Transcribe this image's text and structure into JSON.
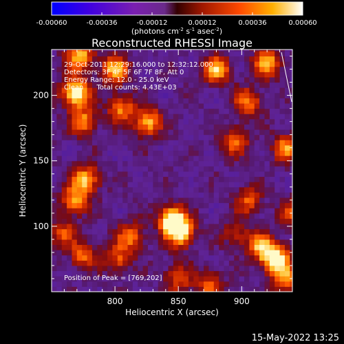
{
  "colorbar": {
    "tick_labels": [
      "-0.00060",
      "-0.00036",
      "-0.00012",
      "0.00012",
      "0.00036",
      "0.00060"
    ],
    "tick_values": [
      -0.0006,
      -0.00036,
      -0.00012,
      0.00012,
      0.00036,
      0.0006
    ],
    "range": [
      -0.0006,
      0.0006
    ],
    "units_main": "(photons cm",
    "units_sup1": "-2",
    "units_mid1": " s",
    "units_sup2": "-1",
    "units_mid2": " asec",
    "units_sup3": "-2",
    "units_end": ")",
    "colors": [
      "#0000ff",
      "#6a00c8",
      "#7f2a9e",
      "#5a1e7a",
      "#a01800",
      "#ff5000",
      "#ffd000",
      "#ffffff"
    ]
  },
  "chart_data": {
    "type": "heatmap",
    "title": "Reconstructed RHESSI Image",
    "xlabel": "Heliocentric X (arcsec)",
    "ylabel": "Heliocentric Y (arcsec)",
    "xlim": [
      750,
      940
    ],
    "ylim": [
      50,
      235
    ],
    "x_ticks": [
      800,
      850,
      900
    ],
    "y_ticks": [
      100,
      150,
      200
    ],
    "annotations": {
      "time": "29-Oct-2011 12:29:16.000 to 12:32:12.000",
      "detectors": "Detectors: 3F 4F 5F 6F 7F 8F, Att 0",
      "energy": "Energy Range: 12.0 - 25.0 keV",
      "clean": "Clean      Total counts: 4.43E+03",
      "peak": "Position of Peak = [769,202]"
    },
    "bright_sources": [
      {
        "x": 769,
        "y": 202,
        "intensity": 1.0
      },
      {
        "x": 772,
        "y": 230,
        "intensity": 0.75
      },
      {
        "x": 775,
        "y": 180,
        "intensity": 0.6
      },
      {
        "x": 800,
        "y": 220,
        "intensity": 0.7
      },
      {
        "x": 826,
        "y": 180,
        "intensity": 0.7
      },
      {
        "x": 805,
        "y": 190,
        "intensity": 0.55
      },
      {
        "x": 880,
        "y": 220,
        "intensity": 0.7
      },
      {
        "x": 920,
        "y": 225,
        "intensity": 0.7
      },
      {
        "x": 905,
        "y": 195,
        "intensity": 0.55
      },
      {
        "x": 895,
        "y": 165,
        "intensity": 0.5
      },
      {
        "x": 935,
        "y": 160,
        "intensity": 0.6
      },
      {
        "x": 768,
        "y": 120,
        "intensity": 0.6
      },
      {
        "x": 777,
        "y": 136,
        "intensity": 0.7
      },
      {
        "x": 758,
        "y": 95,
        "intensity": 0.45
      },
      {
        "x": 775,
        "y": 78,
        "intensity": 0.5
      },
      {
        "x": 812,
        "y": 92,
        "intensity": 0.55
      },
      {
        "x": 802,
        "y": 75,
        "intensity": 0.45
      },
      {
        "x": 845,
        "y": 105,
        "intensity": 0.95
      },
      {
        "x": 852,
        "y": 95,
        "intensity": 0.8
      },
      {
        "x": 850,
        "y": 60,
        "intensity": 0.45
      },
      {
        "x": 875,
        "y": 55,
        "intensity": 0.5
      },
      {
        "x": 905,
        "y": 120,
        "intensity": 0.45
      },
      {
        "x": 927,
        "y": 75,
        "intensity": 0.95
      },
      {
        "x": 915,
        "y": 85,
        "intensity": 0.65
      },
      {
        "x": 935,
        "y": 60,
        "intensity": 0.55
      },
      {
        "x": 895,
        "y": 95,
        "intensity": 0.35
      },
      {
        "x": 940,
        "y": 110,
        "intensity": 0.4
      }
    ]
  },
  "footer": {
    "date": "15-May-2022 13:25"
  }
}
